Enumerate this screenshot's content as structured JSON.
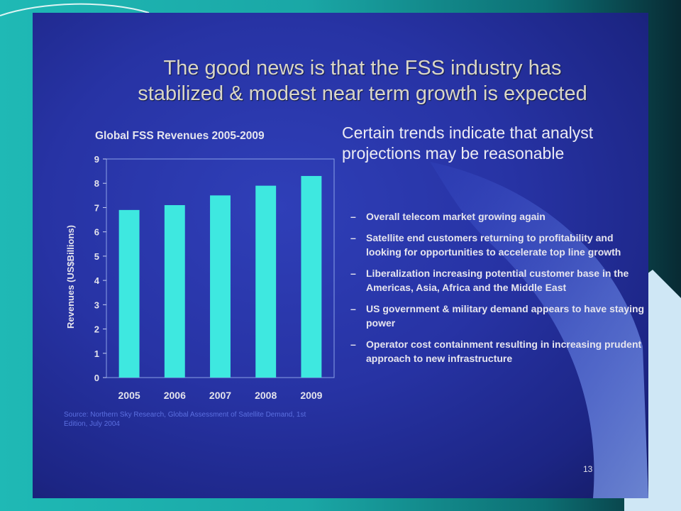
{
  "slide": {
    "title_line1": "The good news is that the FSS industry has",
    "title_line2": "stabilized & modest near term growth is expected",
    "page_number": "13",
    "source_note": "Source: Northern Sky Research, Global Assessment of Satellite Demand, 1st Edition, July 2004"
  },
  "bullets": {
    "intro": "Certain trends indicate that analyst projections may be reasonable",
    "dash": "–",
    "items": [
      "Overall telecom market growing again",
      "Satellite end customers returning to profitability and looking for opportunities to accelerate top line growth",
      "Liberalization increasing potential customer base in the Americas, Asia, Africa and the Middle East",
      "US government & military demand appears to have staying power",
      "Operator cost containment resulting in increasing prudent approach to new infrastructure"
    ]
  },
  "colors": {
    "background_teal": "#1fb9b5",
    "slide_blue": "#2733a4",
    "bar_color": "#3ee8e0",
    "title_color": "#d9d6c8"
  },
  "chart_data": {
    "type": "bar",
    "title": "Global FSS Revenues 2005-2009",
    "xlabel": "",
    "ylabel": "Revenues (US$Billions)",
    "categories": [
      "2005",
      "2006",
      "2007",
      "2008",
      "2009"
    ],
    "values": [
      6.9,
      7.1,
      7.5,
      7.9,
      8.3
    ],
    "ylim": [
      0,
      9
    ],
    "yticks": [
      "0",
      "1",
      "2",
      "3",
      "4",
      "5",
      "6",
      "7",
      "8",
      "9"
    ],
    "grid": false,
    "legend": "none"
  }
}
